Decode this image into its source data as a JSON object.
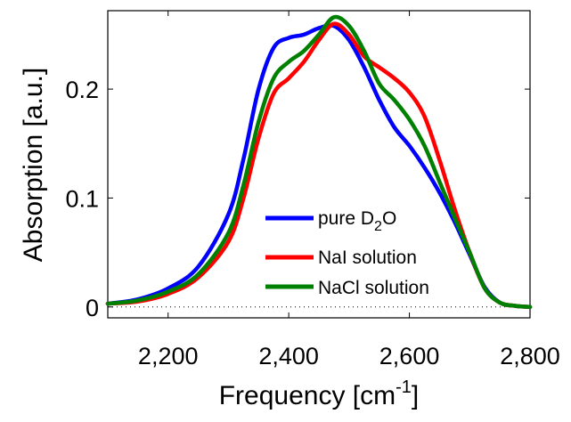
{
  "chart_data": {
    "type": "line",
    "title": "",
    "xlabel": "Frequency [cm",
    "xlabel_sup": "-1",
    "xlabel_end": "]",
    "ylabel": "Absorption [a.u.]",
    "xlim": [
      2100,
      2800
    ],
    "ylim": [
      -0.01,
      0.272
    ],
    "x_ticks": [
      2200,
      2400,
      2600,
      2800
    ],
    "x_tick_labels": [
      "2,200",
      "2,400",
      "2,600",
      "2,800"
    ],
    "y_ticks": [
      0,
      0.1,
      0.2
    ],
    "y_tick_labels": [
      "0",
      "0.1",
      "0.2"
    ],
    "grid": false,
    "zero_line": "dotted",
    "legend_placement": "lower-right",
    "series": [
      {
        "name": "pure D",
        "name_sub": "2",
        "name_end": "O",
        "color": "#0000ff",
        "x": [
          2100,
          2150,
          2200,
          2250,
          2300,
          2325,
          2350,
          2375,
          2400,
          2425,
          2450,
          2475,
          2500,
          2525,
          2550,
          2575,
          2600,
          2625,
          2650,
          2675,
          2700,
          2725,
          2750,
          2775,
          2800
        ],
        "y": [
          0.003,
          0.007,
          0.017,
          0.037,
          0.085,
          0.136,
          0.2,
          0.238,
          0.247,
          0.25,
          0.256,
          0.258,
          0.245,
          0.22,
          0.19,
          0.165,
          0.148,
          0.128,
          0.105,
          0.078,
          0.048,
          0.018,
          0.004,
          0.001,
          0.0
        ]
      },
      {
        "name": "NaI solution",
        "color": "#ff0000",
        "x": [
          2100,
          2150,
          2200,
          2250,
          2300,
          2325,
          2350,
          2375,
          2400,
          2425,
          2450,
          2475,
          2500,
          2525,
          2550,
          2575,
          2600,
          2625,
          2650,
          2675,
          2700,
          2725,
          2750,
          2775,
          2800
        ],
        "y": [
          0.003,
          0.005,
          0.012,
          0.027,
          0.06,
          0.1,
          0.155,
          0.196,
          0.21,
          0.225,
          0.245,
          0.26,
          0.25,
          0.23,
          0.22,
          0.21,
          0.197,
          0.175,
          0.135,
          0.09,
          0.05,
          0.017,
          0.004,
          0.001,
          0.0
        ]
      },
      {
        "name": "NaCl solution",
        "color": "#008000",
        "x": [
          2100,
          2150,
          2200,
          2250,
          2300,
          2325,
          2350,
          2375,
          2400,
          2425,
          2450,
          2475,
          2500,
          2525,
          2550,
          2575,
          2600,
          2625,
          2650,
          2675,
          2700,
          2725,
          2750,
          2775,
          2800
        ],
        "y": [
          0.003,
          0.006,
          0.014,
          0.03,
          0.068,
          0.112,
          0.17,
          0.21,
          0.225,
          0.235,
          0.25,
          0.266,
          0.258,
          0.235,
          0.205,
          0.19,
          0.172,
          0.148,
          0.115,
          0.082,
          0.05,
          0.017,
          0.004,
          0.001,
          0.0
        ]
      }
    ]
  }
}
